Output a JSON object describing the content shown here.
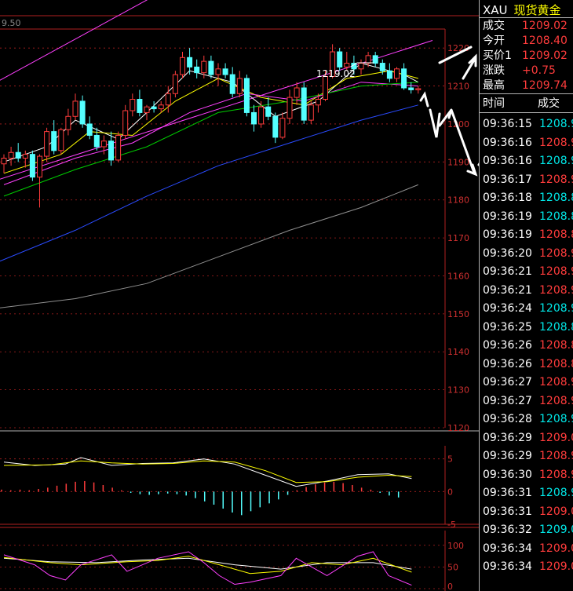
{
  "chart_data": [
    {
      "type": "candlestick",
      "ylim": [
        1120,
        1225
      ],
      "top_label": "9.50",
      "y_ticks": [
        1220,
        1210,
        1200,
        1190,
        1180,
        1170,
        1160,
        1150,
        1140,
        1130,
        1120
      ],
      "annotation": "1219.02",
      "candles": [
        [
          1189.5,
          1192,
          1187,
          1191
        ],
        [
          1191,
          1194,
          1189,
          1192.5
        ],
        [
          1192.5,
          1195,
          1190,
          1191
        ],
        [
          1191,
          1193,
          1188.5,
          1192
        ],
        [
          1192,
          1193,
          1185,
          1186
        ],
        [
          1186,
          1192,
          1178,
          1191.5
        ],
        [
          1191.5,
          1199,
          1190,
          1198
        ],
        [
          1198,
          1201,
          1192,
          1193
        ],
        [
          1193,
          1199,
          1192,
          1198.5
        ],
        [
          1198.5,
          1204,
          1197,
          1202
        ],
        [
          1202,
          1208,
          1201,
          1206
        ],
        [
          1206,
          1207.5,
          1199,
          1200
        ],
        [
          1200,
          1202,
          1196,
          1197
        ],
        [
          1197,
          1199,
          1193,
          1194
        ],
        [
          1194,
          1197,
          1192,
          1195.5
        ],
        [
          1195.5,
          1198,
          1189,
          1190.5
        ],
        [
          1190.5,
          1198,
          1190,
          1197
        ],
        [
          1197,
          1205,
          1196,
          1203.5
        ],
        [
          1203.5,
          1208,
          1202,
          1206.5
        ],
        [
          1206.5,
          1209,
          1202,
          1203
        ],
        [
          1203,
          1205,
          1201,
          1204.5
        ],
        [
          1204.5,
          1206,
          1203,
          1204
        ],
        [
          1204,
          1206,
          1203,
          1205
        ],
        [
          1205,
          1210,
          1203,
          1208
        ],
        [
          1208,
          1214,
          1207,
          1213
        ],
        [
          1213,
          1219,
          1212,
          1217.5
        ],
        [
          1217.5,
          1220,
          1213,
          1215
        ],
        [
          1215,
          1217,
          1212,
          1213.5
        ],
        [
          1213.5,
          1218,
          1212,
          1216.5
        ],
        [
          1216.5,
          1218,
          1212,
          1213
        ],
        [
          1213,
          1216,
          1210,
          1214.5
        ],
        [
          1214.5,
          1216,
          1212,
          1213
        ],
        [
          1213,
          1215,
          1207,
          1208
        ],
        [
          1208,
          1214,
          1207,
          1212
        ],
        [
          1212,
          1213,
          1202,
          1203
        ],
        [
          1203,
          1205,
          1198,
          1200
        ],
        [
          1200,
          1206,
          1199,
          1204.5
        ],
        [
          1204.5,
          1207,
          1201,
          1202
        ],
        [
          1202,
          1203,
          1195,
          1196.5
        ],
        [
          1196.5,
          1203,
          1196,
          1201.5
        ],
        [
          1201.5,
          1209,
          1200,
          1207
        ],
        [
          1207,
          1211,
          1205,
          1209.5
        ],
        [
          1209.5,
          1211,
          1200,
          1201
        ],
        [
          1201,
          1206,
          1200,
          1205
        ],
        [
          1205,
          1208,
          1203,
          1206.5
        ],
        [
          1206.5,
          1214,
          1206,
          1212.5
        ],
        [
          1212.5,
          1221,
          1212,
          1219
        ],
        [
          1219,
          1220,
          1214,
          1215
        ],
        [
          1215,
          1219,
          1214,
          1216
        ],
        [
          1216,
          1218,
          1213,
          1214.5
        ],
        [
          1214.5,
          1217,
          1213,
          1216
        ],
        [
          1216,
          1219,
          1215,
          1218
        ],
        [
          1218,
          1219,
          1215,
          1216
        ],
        [
          1216,
          1217,
          1213,
          1214
        ],
        [
          1214,
          1216,
          1211,
          1212
        ],
        [
          1212,
          1215,
          1211,
          1214.5
        ],
        [
          1214.5,
          1216,
          1209,
          1209.5
        ],
        [
          1209.5,
          1211,
          1208,
          1209
        ],
        [
          1209,
          1210,
          1208,
          1209.3
        ]
      ],
      "ma": [
        {
          "color": "#ffffff",
          "points": [
            [
              0,
              1190
            ],
            [
              6,
              1194
            ],
            [
              10,
              1201
            ],
            [
              16,
              1196
            ],
            [
              20,
              1203
            ],
            [
              26,
              1214
            ],
            [
              32,
              1211
            ],
            [
              38,
              1202
            ],
            [
              44,
              1206
            ],
            [
              50,
              1216
            ],
            [
              56,
              1213
            ],
            [
              58,
              1211
            ]
          ]
        },
        {
          "color": "#ffff00",
          "points": [
            [
              0,
              1187
            ],
            [
              8,
              1192
            ],
            [
              12,
              1198
            ],
            [
              18,
              1197
            ],
            [
              24,
              1206
            ],
            [
              30,
              1212
            ],
            [
              36,
              1207
            ],
            [
              42,
              1205
            ],
            [
              48,
              1212
            ],
            [
              54,
              1214
            ],
            [
              58,
              1212
            ]
          ]
        },
        {
          "color": "#ff40ff",
          "points": [
            [
              0,
              1184
            ],
            [
              10,
              1191
            ],
            [
              18,
              1195
            ],
            [
              26,
              1203
            ],
            [
              34,
              1208
            ],
            [
              42,
              1206
            ],
            [
              50,
              1211
            ],
            [
              58,
              1210
            ]
          ]
        },
        {
          "color": "#00cc00",
          "points": [
            [
              0,
              1181
            ],
            [
              10,
              1188
            ],
            [
              20,
              1194
            ],
            [
              30,
              1203
            ],
            [
              40,
              1206
            ],
            [
              50,
              1210
            ],
            [
              58,
              1211
            ]
          ]
        },
        {
          "color": "#2a4bff",
          "points": [
            [
              -3,
              1162
            ],
            [
              10,
              1172
            ],
            [
              20,
              1181
            ],
            [
              30,
              1189
            ],
            [
              40,
              1195
            ],
            [
              50,
              1201
            ],
            [
              58,
              1205
            ]
          ]
        },
        {
          "color": "#909090",
          "points": [
            [
              -3,
              1151
            ],
            [
              10,
              1154
            ],
            [
              20,
              1158
            ],
            [
              30,
              1165
            ],
            [
              40,
              1172
            ],
            [
              50,
              1178
            ],
            [
              58,
              1184
            ]
          ]
        }
      ],
      "channel_lines": [
        [
          [
            -3,
            1209
          ],
          [
            33,
            1246
          ]
        ],
        [
          [
            -3,
            1184
          ],
          [
            60,
            1222
          ]
        ]
      ]
    },
    {
      "type": "macd",
      "ylim": [
        -5,
        7
      ],
      "y_ticks": [
        5,
        0,
        -5
      ],
      "hist": [
        0.3,
        0.2,
        0.3,
        0.2,
        0.4,
        0.6,
        0.9,
        1.2,
        1.5,
        1.6,
        1.4,
        1.0,
        0.6,
        0.2,
        -0.2,
        -0.4,
        -0.5,
        -0.4,
        -0.3,
        -0.4,
        -0.6,
        -1.0,
        -1.5,
        -2.0,
        -2.6,
        -3.2,
        -3.6,
        -3.0,
        -2.4,
        -1.8,
        -1.2,
        -0.5,
        0.2,
        0.7,
        1.1,
        1.4,
        1.5,
        1.3,
        1.0,
        0.6,
        0.3,
        -0.2,
        -0.6,
        -0.9
      ],
      "dif": [
        [
          0,
          4.5
        ],
        [
          4,
          4.0
        ],
        [
          8,
          4.2
        ],
        [
          10,
          5.2
        ],
        [
          14,
          4.0
        ],
        [
          18,
          4.3
        ],
        [
          22,
          4.4
        ],
        [
          26,
          5.0
        ],
        [
          30,
          4.2
        ],
        [
          34,
          2.5
        ],
        [
          38,
          0.8
        ],
        [
          42,
          1.6
        ],
        [
          46,
          2.6
        ],
        [
          50,
          2.7
        ],
        [
          53,
          2.0
        ]
      ],
      "dea": [
        [
          0,
          4.0
        ],
        [
          6,
          4.1
        ],
        [
          10,
          4.7
        ],
        [
          14,
          4.4
        ],
        [
          18,
          4.2
        ],
        [
          22,
          4.3
        ],
        [
          26,
          4.7
        ],
        [
          30,
          4.5
        ],
        [
          34,
          3.2
        ],
        [
          38,
          1.4
        ],
        [
          42,
          1.5
        ],
        [
          46,
          2.2
        ],
        [
          50,
          2.5
        ],
        [
          53,
          2.3
        ]
      ]
    },
    {
      "type": "kdj",
      "ylim": [
        0,
        105
      ],
      "y_ticks": [
        100,
        50,
        0
      ],
      "k": [
        [
          0,
          78
        ],
        [
          4,
          55
        ],
        [
          6,
          30
        ],
        [
          8,
          20
        ],
        [
          10,
          55
        ],
        [
          14,
          78
        ],
        [
          16,
          40
        ],
        [
          20,
          70
        ],
        [
          24,
          85
        ],
        [
          26,
          60
        ],
        [
          28,
          30
        ],
        [
          30,
          10
        ],
        [
          32,
          15
        ],
        [
          36,
          30
        ],
        [
          38,
          70
        ],
        [
          42,
          30
        ],
        [
          46,
          75
        ],
        [
          48,
          85
        ],
        [
          50,
          30
        ],
        [
          53,
          8
        ]
      ],
      "d": [
        [
          0,
          72
        ],
        [
          6,
          60
        ],
        [
          10,
          55
        ],
        [
          16,
          62
        ],
        [
          20,
          65
        ],
        [
          24,
          75
        ],
        [
          28,
          55
        ],
        [
          32,
          35
        ],
        [
          36,
          40
        ],
        [
          40,
          60
        ],
        [
          44,
          55
        ],
        [
          48,
          70
        ],
        [
          53,
          38
        ]
      ],
      "j": [
        [
          0,
          70
        ],
        [
          6,
          62
        ],
        [
          12,
          60
        ],
        [
          18,
          66
        ],
        [
          24,
          70
        ],
        [
          30,
          55
        ],
        [
          36,
          45
        ],
        [
          42,
          60
        ],
        [
          48,
          60
        ],
        [
          53,
          45
        ]
      ]
    }
  ],
  "quote": {
    "symbol": "XAU",
    "name": "现货黄金",
    "rows": [
      {
        "label": "成交",
        "value": "1209.02"
      },
      {
        "label": "今开",
        "value": "1208.40"
      },
      {
        "label": "买价1",
        "value": "1209.02"
      },
      {
        "label": "涨跌",
        "value": "+0.75"
      },
      {
        "label": "最高",
        "value": "1209.74"
      }
    ],
    "ticks_header": {
      "time": "时间",
      "price": "成交"
    },
    "ticks": [
      {
        "time": "09:36:15",
        "price": "1208.9",
        "dir": "g"
      },
      {
        "time": "09:36:16",
        "price": "1208.9",
        "dir": "r"
      },
      {
        "time": "09:36:16",
        "price": "1208.9",
        "dir": "g"
      },
      {
        "time": "09:36:17",
        "price": "1208.9",
        "dir": "r"
      },
      {
        "time": "09:36:18",
        "price": "1208.8",
        "dir": "g"
      },
      {
        "time": "09:36:19",
        "price": "1208.8",
        "dir": "g"
      },
      {
        "time": "09:36:19",
        "price": "1208.8",
        "dir": "r"
      },
      {
        "time": "09:36:20",
        "price": "1208.9",
        "dir": "r"
      },
      {
        "time": "09:36:21",
        "price": "1208.9",
        "dir": "r"
      },
      {
        "time": "09:36:21",
        "price": "1208.9",
        "dir": "r"
      },
      {
        "time": "09:36:24",
        "price": "1208.9",
        "dir": "g"
      },
      {
        "time": "09:36:25",
        "price": "1208.8",
        "dir": "g"
      },
      {
        "time": "09:36:26",
        "price": "1208.8",
        "dir": "r"
      },
      {
        "time": "09:36:26",
        "price": "1208.8",
        "dir": "r"
      },
      {
        "time": "09:36:27",
        "price": "1208.9",
        "dir": "r"
      },
      {
        "time": "09:36:27",
        "price": "1208.9",
        "dir": "r"
      },
      {
        "time": "09:36:28",
        "price": "1208.9",
        "dir": "g"
      },
      {
        "time": "09:36:29",
        "price": "1209.0",
        "dir": "r"
      },
      {
        "time": "09:36:29",
        "price": "1208.9",
        "dir": "r"
      },
      {
        "time": "09:36:30",
        "price": "1208.9",
        "dir": "r"
      },
      {
        "time": "09:36:31",
        "price": "1208.9",
        "dir": "g"
      },
      {
        "time": "09:36:31",
        "price": "1209.0",
        "dir": "r"
      },
      {
        "time": "09:36:32",
        "price": "1209.0",
        "dir": "g"
      },
      {
        "time": "09:36:34",
        "price": "1209.0",
        "dir": "r"
      },
      {
        "time": "09:36:34",
        "price": "1209.0",
        "dir": "r"
      }
    ]
  }
}
